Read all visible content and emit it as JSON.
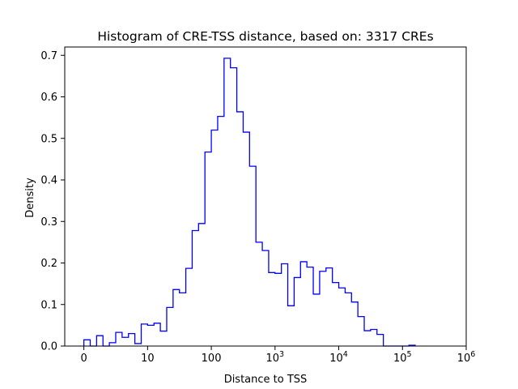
{
  "chart_data": {
    "type": "histogram",
    "title": "Histogram of CRE-TSS distance, based on: 3317 CREs",
    "xlabel": "Distance to TSS",
    "ylabel": "Density",
    "x_scale": "symlog-like (0, 10, 100, 10^3, 10^4, 10^5, 10^6)",
    "x_ticks": [
      {
        "label": "0",
        "pos": 0
      },
      {
        "label": "10",
        "pos": 1
      },
      {
        "label": "100",
        "pos": 2
      },
      {
        "label": "10",
        "exp": "3",
        "pos": 3
      },
      {
        "label": "10",
        "exp": "4",
        "pos": 4
      },
      {
        "label": "10",
        "exp": "5",
        "pos": 5
      },
      {
        "label": "10",
        "exp": "6",
        "pos": 6
      }
    ],
    "xlim": [
      -0.3,
      6.0
    ],
    "ylim": [
      0,
      0.72
    ],
    "y_ticks": [
      "0.0",
      "0.1",
      "0.2",
      "0.3",
      "0.4",
      "0.5",
      "0.6",
      "0.7"
    ],
    "grid": false,
    "series": [
      {
        "color": "#0000ff",
        "bin_start": 0.0,
        "bin_width": 0.1,
        "densities": [
          0.015,
          0.0,
          0.025,
          0.0,
          0.008,
          0.033,
          0.021,
          0.03,
          0.006,
          0.053,
          0.05,
          0.055,
          0.036,
          0.093,
          0.136,
          0.128,
          0.187,
          0.278,
          0.295,
          0.467,
          0.52,
          0.553,
          0.693,
          0.67,
          0.564,
          0.515,
          0.433,
          0.25,
          0.23,
          0.177,
          0.175,
          0.198,
          0.097,
          0.165,
          0.203,
          0.19,
          0.125,
          0.18,
          0.188,
          0.153,
          0.14,
          0.128,
          0.106,
          0.071,
          0.037,
          0.04,
          0.028,
          0.0,
          0.0,
          0.0,
          0.0,
          0.002
        ]
      }
    ]
  }
}
